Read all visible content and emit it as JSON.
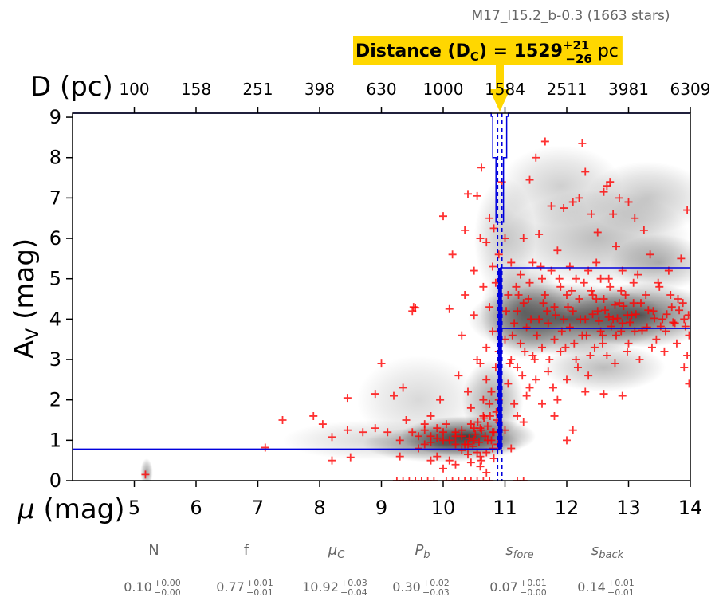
{
  "header": {
    "subtitle": "M17_l15.2_b-0.3 (1663 stars)"
  },
  "distance_box": {
    "label": "Distance (D",
    "sub": "C",
    "eq": ") = 1529",
    "sup": "+21",
    "inf": "−26",
    "unit": " pc",
    "bg_color": "#ffd700"
  },
  "params": [
    {
      "name": "N",
      "value": "0.10",
      "plus": "+0.00",
      "minus": "−0.00"
    },
    {
      "name": "f",
      "value": "0.77",
      "plus": "+0.01",
      "minus": "−0.01"
    },
    {
      "name": "μC",
      "value": "10.92",
      "plus": "+0.03",
      "minus": "−0.04"
    },
    {
      "name": "Pb",
      "value": "0.30",
      "plus": "+0.02",
      "minus": "−0.03"
    },
    {
      "name": "sfore",
      "value": "0.07",
      "plus": "+0.01",
      "minus": "−0.00"
    },
    {
      "name": "sback",
      "value": "0.14",
      "plus": "+0.01",
      "minus": "−0.01"
    }
  ],
  "chart_data": {
    "type": "scatter",
    "xlabel": "μ (mag)",
    "ylabel": "AV (mag)",
    "top_axis_label": "D (pc)",
    "xlim": [
      4,
      14
    ],
    "ylim": [
      0,
      9.1
    ],
    "x_ticks": [
      "5",
      "6",
      "7",
      "8",
      "9",
      "10",
      "11",
      "12",
      "13",
      "14"
    ],
    "x_tick_values": [
      5,
      6,
      7,
      8,
      9,
      10,
      11,
      12,
      13,
      14
    ],
    "y_ticks": [
      "0",
      "1",
      "2",
      "3",
      "4",
      "5",
      "6",
      "7",
      "8",
      "9"
    ],
    "y_tick_values": [
      0,
      1,
      2,
      3,
      4,
      5,
      6,
      7,
      8,
      9
    ],
    "top_ticks": [
      "100",
      "158",
      "251",
      "398",
      "630",
      "1000",
      "1584",
      "2511",
      "3981",
      "6309"
    ],
    "top_tick_values": [
      5,
      6,
      7,
      8,
      9,
      10,
      11,
      12,
      13,
      14
    ],
    "distance_modulus": 10.92,
    "distance_modulus_err": [
      10.88,
      10.95
    ],
    "foreground_av": 0.78,
    "background_av": 3.77,
    "background_av_upper": 5.27,
    "marker_color": "#ff0000",
    "line_color": "#0000dd",
    "stars": [
      [
        5.18,
        0.15
      ],
      [
        7.12,
        0.82
      ],
      [
        7.4,
        1.5
      ],
      [
        7.9,
        1.6
      ],
      [
        8.05,
        1.4
      ],
      [
        8.2,
        1.08
      ],
      [
        8.2,
        0.5
      ],
      [
        8.45,
        1.25
      ],
      [
        8.45,
        2.05
      ],
      [
        8.5,
        0.58
      ],
      [
        8.7,
        1.2
      ],
      [
        8.9,
        1.3
      ],
      [
        8.9,
        2.15
      ],
      [
        9.1,
        1.2
      ],
      [
        9.2,
        2.1
      ],
      [
        9.35,
        2.3
      ],
      [
        9.3,
        1.0
      ],
      [
        9.3,
        0.6
      ],
      [
        9.4,
        1.5
      ],
      [
        9.5,
        1.2
      ],
      [
        9.5,
        4.2
      ],
      [
        9.55,
        4.28
      ],
      [
        9.52,
        4.3
      ],
      [
        9.0,
        2.9
      ],
      [
        9.6,
        0.8
      ],
      [
        9.7,
        1.4
      ],
      [
        9.7,
        0.9
      ],
      [
        9.8,
        1.6
      ],
      [
        9.8,
        1.1
      ],
      [
        9.9,
        0.6
      ],
      [
        9.9,
        1.3
      ],
      [
        9.95,
        2.0
      ],
      [
        10.0,
        6.55
      ],
      [
        10.0,
        1.0
      ],
      [
        10.05,
        1.4
      ],
      [
        10.1,
        4.25
      ],
      [
        10.15,
        5.6
      ],
      [
        10.2,
        1.2
      ],
      [
        10.2,
        0.4
      ],
      [
        10.25,
        2.6
      ],
      [
        10.3,
        3.6
      ],
      [
        10.3,
        1.1
      ],
      [
        10.35,
        4.6
      ],
      [
        10.35,
        6.2
      ],
      [
        10.4,
        7.1
      ],
      [
        10.4,
        0.9
      ],
      [
        10.4,
        2.2
      ],
      [
        10.45,
        1.4
      ],
      [
        10.5,
        5.2
      ],
      [
        10.5,
        4.1
      ],
      [
        10.5,
        1.0
      ],
      [
        10.55,
        3.0
      ],
      [
        10.55,
        7.05
      ],
      [
        10.6,
        6.0
      ],
      [
        10.6,
        2.9
      ],
      [
        10.6,
        1.3
      ],
      [
        10.62,
        7.75
      ],
      [
        10.65,
        4.8
      ],
      [
        10.65,
        1.6
      ],
      [
        10.7,
        3.3
      ],
      [
        10.7,
        5.9
      ],
      [
        10.7,
        2.5
      ],
      [
        10.72,
        1.0
      ],
      [
        10.75,
        4.3
      ],
      [
        10.75,
        6.5
      ],
      [
        10.78,
        2.2
      ],
      [
        10.8,
        3.7
      ],
      [
        10.8,
        5.3
      ],
      [
        10.8,
        1.2
      ],
      [
        10.82,
        6.25
      ],
      [
        10.85,
        2.8
      ],
      [
        10.85,
        4.9
      ],
      [
        10.87,
        1.5
      ],
      [
        10.9,
        3.2
      ],
      [
        10.9,
        5.6
      ],
      [
        10.9,
        2.0
      ],
      [
        10.55,
        0.7
      ],
      [
        10.45,
        1.8
      ],
      [
        10.65,
        2.0
      ],
      [
        10.3,
        0.75
      ],
      [
        10.2,
        0.9
      ],
      [
        10.1,
        0.5
      ],
      [
        10.0,
        0.3
      ],
      [
        9.8,
        0.5
      ],
      [
        10.7,
        0.2
      ],
      [
        10.75,
        1.9
      ],
      [
        10.6,
        0.35
      ],
      [
        10.95,
        7.4
      ],
      [
        11.0,
        3.5
      ],
      [
        11.0,
        6.0
      ],
      [
        11.05,
        2.4
      ],
      [
        11.05,
        4.6
      ],
      [
        11.1,
        5.4
      ],
      [
        11.1,
        3.0
      ],
      [
        11.15,
        3.9
      ],
      [
        11.15,
        1.9
      ],
      [
        11.2,
        4.2
      ],
      [
        11.2,
        2.8
      ],
      [
        11.25,
        5.1
      ],
      [
        11.25,
        3.4
      ],
      [
        11.3,
        6.0
      ],
      [
        11.3,
        4.4
      ],
      [
        11.35,
        2.1
      ],
      [
        11.35,
        3.8
      ],
      [
        11.4,
        7.45
      ],
      [
        11.4,
        4.9
      ],
      [
        11.45,
        3.1
      ],
      [
        11.45,
        5.4
      ],
      [
        11.5,
        8.0
      ],
      [
        11.5,
        2.5
      ],
      [
        11.55,
        4.0
      ],
      [
        11.55,
        6.1
      ],
      [
        11.6,
        3.3
      ],
      [
        11.6,
        5.0
      ],
      [
        11.65,
        4.6
      ],
      [
        11.65,
        8.4
      ],
      [
        11.7,
        2.7
      ],
      [
        11.7,
        3.9
      ],
      [
        11.75,
        6.8
      ],
      [
        11.75,
        5.2
      ],
      [
        11.8,
        3.5
      ],
      [
        11.8,
        4.3
      ],
      [
        11.85,
        2.0
      ],
      [
        11.85,
        5.7
      ],
      [
        11.9,
        4.8
      ],
      [
        11.9,
        3.2
      ],
      [
        11.95,
        4.0
      ],
      [
        11.95,
        6.75
      ],
      [
        12.0,
        4.6
      ],
      [
        12.0,
        2.5
      ],
      [
        12.05,
        5.3
      ],
      [
        12.05,
        3.8
      ],
      [
        12.1,
        4.2
      ],
      [
        12.1,
        6.9
      ],
      [
        12.15,
        3.0
      ],
      [
        12.15,
        5.0
      ],
      [
        12.2,
        4.5
      ],
      [
        12.2,
        7.0
      ],
      [
        12.25,
        3.6
      ],
      [
        12.25,
        8.35
      ],
      [
        12.3,
        7.65
      ],
      [
        12.3,
        4.0
      ],
      [
        12.35,
        5.2
      ],
      [
        12.35,
        2.6
      ],
      [
        12.4,
        4.7
      ],
      [
        12.4,
        6.6
      ],
      [
        12.45,
        3.3
      ],
      [
        12.5,
        4.2
      ],
      [
        12.5,
        6.15
      ],
      [
        12.55,
        5.0
      ],
      [
        12.55,
        3.7
      ],
      [
        12.6,
        7.15
      ],
      [
        12.6,
        4.5
      ],
      [
        12.65,
        7.3
      ],
      [
        12.65,
        3.1
      ],
      [
        12.7,
        4.8
      ],
      [
        12.7,
        7.4
      ],
      [
        12.75,
        4.0
      ],
      [
        12.75,
        6.6
      ],
      [
        12.8,
        3.6
      ],
      [
        12.8,
        5.8
      ],
      [
        12.85,
        4.4
      ],
      [
        12.85,
        7.0
      ],
      [
        12.9,
        3.9
      ],
      [
        12.9,
        5.2
      ],
      [
        12.95,
        4.6
      ],
      [
        13.0,
        3.4
      ],
      [
        13.0,
        6.9
      ],
      [
        13.05,
        4.1
      ],
      [
        13.1,
        6.5
      ],
      [
        13.1,
        3.7
      ],
      [
        13.15,
        5.1
      ],
      [
        13.2,
        4.4
      ],
      [
        13.25,
        6.2
      ],
      [
        13.3,
        3.8
      ],
      [
        13.35,
        5.6
      ],
      [
        13.4,
        4.2
      ],
      [
        13.45,
        3.5
      ],
      [
        13.5,
        4.8
      ],
      [
        13.55,
        4.0
      ],
      [
        13.6,
        3.7
      ],
      [
        13.65,
        5.2
      ],
      [
        13.7,
        4.3
      ],
      [
        13.75,
        3.9
      ],
      [
        13.8,
        4.5
      ],
      [
        13.85,
        5.5
      ],
      [
        13.9,
        4.0
      ],
      [
        13.95,
        6.7
      ],
      [
        13.98,
        2.4
      ],
      [
        11.0,
        1.25
      ],
      [
        11.1,
        0.8
      ],
      [
        11.2,
        1.6
      ],
      [
        11.3,
        1.45
      ],
      [
        11.4,
        2.3
      ],
      [
        11.6,
        1.9
      ],
      [
        11.8,
        1.6
      ],
      [
        12.0,
        1.0
      ],
      [
        12.1,
        1.25
      ],
      [
        12.3,
        2.2
      ],
      [
        12.6,
        2.15
      ],
      [
        12.9,
        2.1
      ],
      [
        13.9,
        2.8
      ],
      [
        13.95,
        3.1
      ],
      [
        12.52,
        3.95
      ],
      [
        12.42,
        4.12
      ],
      [
        12.62,
        4.22
      ],
      [
        12.72,
        3.82
      ],
      [
        12.82,
        4.02
      ],
      [
        12.92,
        4.32
      ],
      [
        13.02,
        3.92
      ],
      [
        13.12,
        4.12
      ],
      [
        13.22,
        3.72
      ],
      [
        13.32,
        4.22
      ],
      [
        13.42,
        4.02
      ],
      [
        13.52,
        3.82
      ],
      [
        13.62,
        4.12
      ],
      [
        13.72,
        3.92
      ],
      [
        13.82,
        4.22
      ],
      [
        13.92,
        3.82
      ],
      [
        13.97,
        4.1
      ],
      [
        12.48,
        4.5
      ],
      [
        12.58,
        3.6
      ],
      [
        12.68,
        4.05
      ],
      [
        12.78,
        4.35
      ],
      [
        12.88,
        3.7
      ],
      [
        12.98,
        4.1
      ],
      [
        13.08,
        4.4
      ],
      [
        11.02,
        4.2
      ],
      [
        11.12,
        3.6
      ],
      [
        11.22,
        4.6
      ],
      [
        11.32,
        3.2
      ],
      [
        11.42,
        4.0
      ],
      [
        11.52,
        3.6
      ],
      [
        11.62,
        4.4
      ],
      [
        11.72,
        3.0
      ],
      [
        11.82,
        4.1
      ],
      [
        11.92,
        3.7
      ],
      [
        12.02,
        4.3
      ],
      [
        12.12,
        3.4
      ],
      [
        12.22,
        4.0
      ],
      [
        12.32,
        3.6
      ],
      [
        12.42,
        4.6
      ],
      [
        11.08,
        2.9
      ],
      [
        11.18,
        4.8
      ],
      [
        11.28,
        2.6
      ],
      [
        11.38,
        4.5
      ],
      [
        11.48,
        3.0
      ],
      [
        11.58,
        5.3
      ],
      [
        11.68,
        4.2
      ],
      [
        11.78,
        2.3
      ],
      [
        11.88,
        5.0
      ],
      [
        11.98,
        3.3
      ],
      [
        12.08,
        4.7
      ],
      [
        12.18,
        2.8
      ],
      [
        12.28,
        4.9
      ],
      [
        12.38,
        3.1
      ],
      [
        12.48,
        5.4
      ],
      [
        12.58,
        3.4
      ],
      [
        12.68,
        5.0
      ],
      [
        12.78,
        2.9
      ],
      [
        12.88,
        4.7
      ],
      [
        12.98,
        3.2
      ],
      [
        13.08,
        4.9
      ],
      [
        13.18,
        3.0
      ],
      [
        13.28,
        4.6
      ],
      [
        13.38,
        3.3
      ],
      [
        13.48,
        4.9
      ],
      [
        13.58,
        3.2
      ],
      [
        13.68,
        4.6
      ],
      [
        13.78,
        3.4
      ],
      [
        13.88,
        4.4
      ],
      [
        13.98,
        3.6
      ],
      [
        9.25,
        0.0
      ],
      [
        9.35,
        0.0
      ],
      [
        9.45,
        0.0
      ],
      [
        9.55,
        0.0
      ],
      [
        9.65,
        0.0
      ],
      [
        9.75,
        0.0
      ],
      [
        9.85,
        0.0
      ],
      [
        10.05,
        0.0
      ],
      [
        10.15,
        0.0
      ],
      [
        10.25,
        0.0
      ],
      [
        10.35,
        0.0
      ],
      [
        10.45,
        0.0
      ],
      [
        10.55,
        0.0
      ],
      [
        10.65,
        0.0
      ],
      [
        10.75,
        0.0
      ],
      [
        11.2,
        0.0
      ],
      [
        11.3,
        0.0
      ],
      [
        10.35,
        0.9
      ],
      [
        10.42,
        1.05
      ],
      [
        10.48,
        0.85
      ],
      [
        10.52,
        1.15
      ],
      [
        10.58,
        0.95
      ],
      [
        10.62,
        1.25
      ],
      [
        10.68,
        1.1
      ],
      [
        10.72,
        1.35
      ],
      [
        10.78,
        1.0
      ],
      [
        10.82,
        1.2
      ],
      [
        10.88,
        0.9
      ],
      [
        10.5,
        1.3
      ],
      [
        10.56,
        1.45
      ],
      [
        10.66,
        1.55
      ],
      [
        10.76,
        1.6
      ],
      [
        10.86,
        1.7
      ],
      [
        10.9,
        1.45
      ],
      [
        10.8,
        0.8
      ],
      [
        10.7,
        0.7
      ],
      [
        10.6,
        0.6
      ],
      [
        10.4,
        0.65
      ],
      [
        10.3,
        1.25
      ],
      [
        10.2,
        1.1
      ],
      [
        10.1,
        1.0
      ],
      [
        10.0,
        1.2
      ],
      [
        9.9,
        1.05
      ],
      [
        9.8,
        0.95
      ],
      [
        9.7,
        1.25
      ],
      [
        9.6,
        1.1
      ],
      [
        10.45,
        0.45
      ],
      [
        10.62,
        0.5
      ],
      [
        10.82,
        0.55
      ]
    ]
  }
}
